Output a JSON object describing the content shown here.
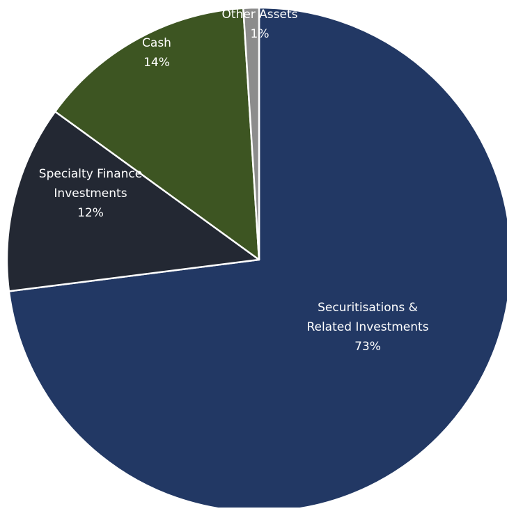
{
  "chart_data": {
    "type": "pie",
    "title": "",
    "slices": [
      {
        "label_lines": [
          "Securitisations &",
          "Related Investments"
        ],
        "value_label": "73%",
        "value": 73,
        "color": "#223864"
      },
      {
        "label_lines": [
          "Specialty Finance",
          "Investments"
        ],
        "value_label": "12%",
        "value": 12,
        "color": "#232833"
      },
      {
        "label_lines": [
          "Cash"
        ],
        "value_label": "14%",
        "value": 14,
        "color": "#3D5522"
      },
      {
        "label_lines": [
          "Other Assets"
        ],
        "value_label": "1%",
        "value": 1,
        "color": "#8C8C8C"
      }
    ],
    "legend": "none",
    "slice_border_color": "#ffffff"
  }
}
